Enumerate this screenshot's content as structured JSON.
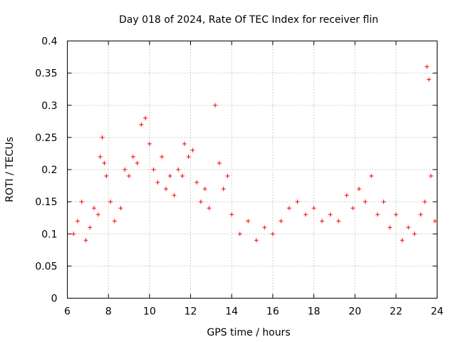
{
  "chart_data": {
    "type": "scatter",
    "title": "Day 018 of 2024, Rate Of TEC Index for receiver flin",
    "xlabel": "GPS time / hours",
    "ylabel": "ROTI / TECUs",
    "xlim": [
      6,
      24
    ],
    "ylim": [
      0,
      0.4
    ],
    "xticks": [
      "6",
      "8",
      "10",
      "12",
      "14",
      "16",
      "18",
      "20",
      "22",
      "24"
    ],
    "yticks": [
      "0",
      "0.05",
      "0.1",
      "0.15",
      "0.2",
      "0.25",
      "0.3",
      "0.35",
      "0.4"
    ],
    "grid": true,
    "marker": "+",
    "series": [
      {
        "name": "ROTI",
        "color": "#ff0000",
        "x": [
          6.3,
          6.5,
          6.7,
          6.9,
          7.1,
          7.3,
          7.5,
          7.6,
          7.7,
          7.8,
          7.9,
          8.1,
          8.3,
          8.6,
          8.8,
          9.0,
          9.2,
          9.4,
          9.6,
          9.8,
          10.0,
          10.2,
          10.4,
          10.6,
          10.8,
          11.0,
          11.2,
          11.4,
          11.6,
          11.7,
          11.9,
          12.1,
          12.3,
          12.5,
          12.7,
          12.9,
          13.2,
          13.4,
          13.6,
          13.8,
          14.0,
          14.4,
          14.8,
          15.2,
          15.6,
          16.0,
          16.4,
          16.8,
          17.2,
          17.6,
          18.0,
          18.4,
          18.8,
          19.2,
          19.6,
          19.9,
          20.2,
          20.5,
          20.8,
          21.1,
          21.4,
          21.7,
          22.0,
          22.3,
          22.6,
          22.9,
          23.2,
          23.4,
          23.5,
          23.6,
          23.7,
          23.9
        ],
        "y": [
          0.1,
          0.12,
          0.15,
          0.09,
          0.11,
          0.14,
          0.13,
          0.22,
          0.25,
          0.21,
          0.19,
          0.15,
          0.12,
          0.14,
          0.2,
          0.19,
          0.22,
          0.21,
          0.27,
          0.28,
          0.24,
          0.2,
          0.18,
          0.22,
          0.17,
          0.19,
          0.16,
          0.2,
          0.19,
          0.24,
          0.22,
          0.23,
          0.18,
          0.15,
          0.17,
          0.14,
          0.3,
          0.21,
          0.17,
          0.19,
          0.13,
          0.1,
          0.12,
          0.09,
          0.11,
          0.1,
          0.12,
          0.14,
          0.15,
          0.13,
          0.14,
          0.12,
          0.13,
          0.12,
          0.16,
          0.14,
          0.17,
          0.15,
          0.19,
          0.13,
          0.15,
          0.11,
          0.13,
          0.09,
          0.11,
          0.1,
          0.13,
          0.15,
          0.36,
          0.34,
          0.19,
          0.12
        ]
      }
    ]
  }
}
